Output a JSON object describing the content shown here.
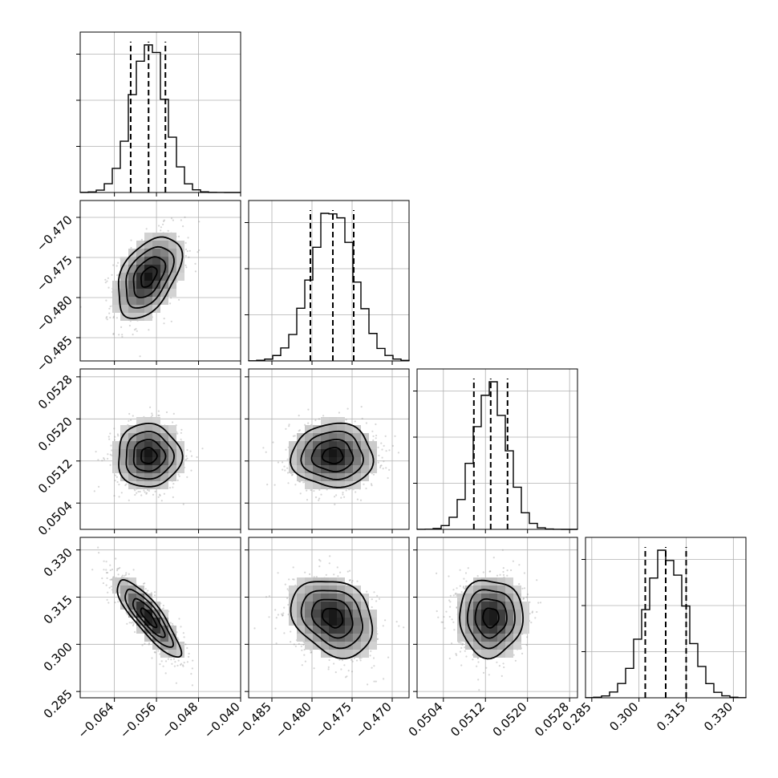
{
  "chart_data": {
    "type": "corner",
    "grid": true,
    "parameters": [
      {
        "index": 0,
        "mean": -0.0575,
        "sd": 0.0032,
        "range": [
          -0.0705,
          -0.04
        ],
        "ticks": [
          "−0.064",
          "−0.056",
          "−0.048",
          "−0.040"
        ],
        "tick_values": [
          -0.064,
          -0.056,
          -0.048,
          -0.04
        ],
        "quantiles": [
          -0.0609,
          -0.0575,
          -0.0543
        ]
      },
      {
        "index": 1,
        "mean": -0.4774,
        "sd": 0.0027,
        "range": [
          -0.4879,
          -0.4679
        ],
        "ticks": [
          "−0.485",
          "−0.480",
          "−0.475",
          "−0.470"
        ],
        "tick_values": [
          -0.485,
          -0.48,
          -0.475,
          -0.47
        ],
        "quantiles": [
          -0.4802,
          -0.4774,
          -0.4748
        ]
      },
      {
        "index": 2,
        "mean": 0.0513,
        "sd": 0.00032,
        "range": [
          0.0499,
          0.05295
        ],
        "ticks": [
          "0.0504",
          "0.0512",
          "0.0520",
          "0.0528"
        ],
        "tick_values": [
          0.0504,
          0.0512,
          0.052,
          0.0528
        ],
        "quantiles": [
          0.05098,
          0.0513,
          0.05162
        ]
      },
      {
        "index": 3,
        "mean": 0.3085,
        "sd": 0.0065,
        "range": [
          0.283,
          0.334
        ],
        "ticks": [
          "0.285",
          "0.300",
          "0.315",
          "0.330"
        ],
        "tick_values": [
          0.285,
          0.3,
          0.315,
          0.33
        ],
        "quantiles": [
          0.302,
          0.3085,
          0.315
        ]
      }
    ],
    "correlations": [
      [
        0,
        1,
        0.45
      ],
      [
        0,
        2,
        0.0
      ],
      [
        0,
        3,
        -0.85
      ],
      [
        1,
        2,
        0.0
      ],
      [
        1,
        3,
        -0.25
      ],
      [
        2,
        3,
        0.0
      ]
    ],
    "histogram_bins": 20,
    "contour_levels": [
      "0.5-sigma",
      "1-sigma",
      "1.5-sigma",
      "2-sigma"
    ]
  }
}
